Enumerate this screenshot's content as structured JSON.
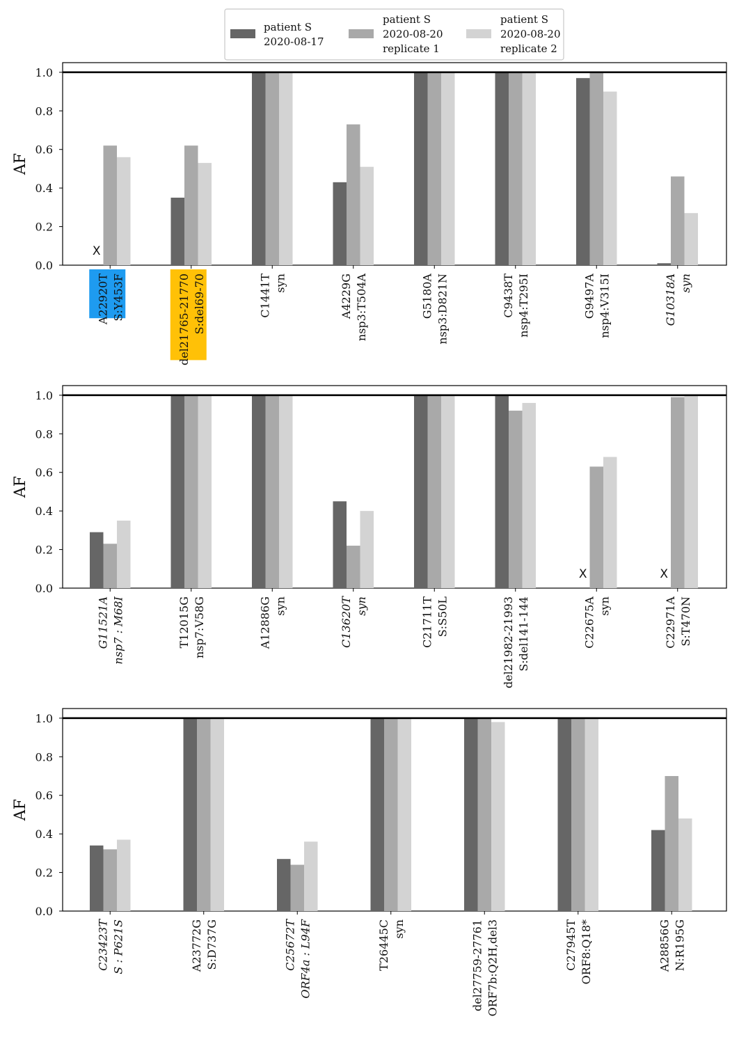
{
  "colors": {
    "series_0": "#666666",
    "series_1": "#a9a9a9",
    "series_2": "#d3d3d3",
    "highlight_blue": "#1e9bf0",
    "highlight_yellow": "#ffc107",
    "reference_line": "#000000"
  },
  "legend": {
    "position": "top-center",
    "entries": [
      [
        "patient S",
        "2020-08-17"
      ],
      [
        "patient S",
        "2020-08-20",
        "replicate 1"
      ],
      [
        "patient S",
        "2020-08-20",
        "replicate 2"
      ]
    ]
  },
  "missing_marker": "X",
  "chart_data": [
    {
      "type": "bar",
      "ylabel": "AF",
      "ylim": [
        0,
        1.0
      ],
      "yticks": [
        "0.0",
        "0.2",
        "0.4",
        "0.6",
        "0.8",
        "1.0"
      ],
      "reference_line_y": 1.0,
      "categories": [
        {
          "lines": [
            "A22920T",
            "S:Y453F"
          ],
          "italic": false,
          "highlight": "blue"
        },
        {
          "lines": [
            "del21765-21770",
            "S:del69-70"
          ],
          "italic": false,
          "highlight": "yellow"
        },
        {
          "lines": [
            "C1441T",
            "syn"
          ],
          "italic": false
        },
        {
          "lines": [
            "A4229G",
            "nsp3:T504A"
          ],
          "italic": false
        },
        {
          "lines": [
            "G5180A",
            "nsp3:D821N"
          ],
          "italic": false
        },
        {
          "lines": [
            "C9438T",
            "nsp4:T295I"
          ],
          "italic": false
        },
        {
          "lines": [
            "G9497A",
            "nsp4:V315I"
          ],
          "italic": false
        },
        {
          "lines": [
            "G10318A",
            "syn"
          ],
          "italic": true
        }
      ],
      "series": [
        {
          "legend_index": 0,
          "values": [
            null,
            0.35,
            1.0,
            0.43,
            1.0,
            1.0,
            0.97,
            0.01
          ]
        },
        {
          "legend_index": 1,
          "values": [
            0.62,
            0.62,
            1.0,
            0.73,
            1.0,
            1.0,
            1.0,
            0.46
          ]
        },
        {
          "legend_index": 2,
          "values": [
            0.56,
            0.53,
            1.0,
            0.51,
            1.0,
            1.0,
            0.9,
            0.27
          ]
        }
      ]
    },
    {
      "type": "bar",
      "ylabel": "AF",
      "ylim": [
        0,
        1.0
      ],
      "yticks": [
        "0.0",
        "0.2",
        "0.4",
        "0.6",
        "0.8",
        "1.0"
      ],
      "reference_line_y": 1.0,
      "categories": [
        {
          "lines": [
            "G11521A",
            "nsp7 : M68I"
          ],
          "italic": true
        },
        {
          "lines": [
            "T12015G",
            "nsp7:V58G"
          ],
          "italic": false
        },
        {
          "lines": [
            "A12886G",
            "syn"
          ],
          "italic": false
        },
        {
          "lines": [
            "C13620T",
            "syn"
          ],
          "italic": true
        },
        {
          "lines": [
            "C21711T",
            "S:S50L"
          ],
          "italic": false
        },
        {
          "lines": [
            "del21982-21993",
            "S:del141-144"
          ],
          "italic": false
        },
        {
          "lines": [
            "C22675A",
            "syn"
          ],
          "italic": false
        },
        {
          "lines": [
            "C22971A",
            "S:T470N"
          ],
          "italic": false
        }
      ],
      "series": [
        {
          "legend_index": 0,
          "values": [
            0.29,
            1.0,
            1.0,
            0.45,
            1.0,
            1.0,
            null,
            null
          ]
        },
        {
          "legend_index": 1,
          "values": [
            0.23,
            1.0,
            1.0,
            0.22,
            1.0,
            0.92,
            0.63,
            0.99
          ]
        },
        {
          "legend_index": 2,
          "values": [
            0.35,
            1.0,
            1.0,
            0.4,
            1.0,
            0.96,
            0.68,
            1.0
          ]
        }
      ]
    },
    {
      "type": "bar",
      "ylabel": "AF",
      "ylim": [
        0,
        1.0
      ],
      "yticks": [
        "0.0",
        "0.2",
        "0.4",
        "0.6",
        "0.8",
        "1.0"
      ],
      "reference_line_y": 1.0,
      "categories": [
        {
          "lines": [
            "C23423T",
            "S : P621S"
          ],
          "italic": true
        },
        {
          "lines": [
            "A23772G",
            "S:D737G"
          ],
          "italic": false
        },
        {
          "lines": [
            "C25672T",
            "ORF4a : L94F"
          ],
          "italic": true
        },
        {
          "lines": [
            "T26445C",
            "syn"
          ],
          "italic": false
        },
        {
          "lines": [
            "del27759-27761",
            "ORF7b:Q2H,del3"
          ],
          "italic": false
        },
        {
          "lines": [
            "C27945T",
            "ORF8:Q18*"
          ],
          "italic": false
        },
        {
          "lines": [
            "A28856G",
            "N:R195G"
          ],
          "italic": false
        }
      ],
      "series": [
        {
          "legend_index": 0,
          "values": [
            0.34,
            1.0,
            0.27,
            1.0,
            1.0,
            1.0,
            0.42
          ]
        },
        {
          "legend_index": 1,
          "values": [
            0.32,
            1.0,
            0.24,
            1.0,
            1.0,
            1.0,
            0.7
          ]
        },
        {
          "legend_index": 2,
          "values": [
            0.37,
            1.0,
            0.36,
            1.0,
            0.98,
            1.0,
            0.48
          ]
        }
      ]
    }
  ]
}
